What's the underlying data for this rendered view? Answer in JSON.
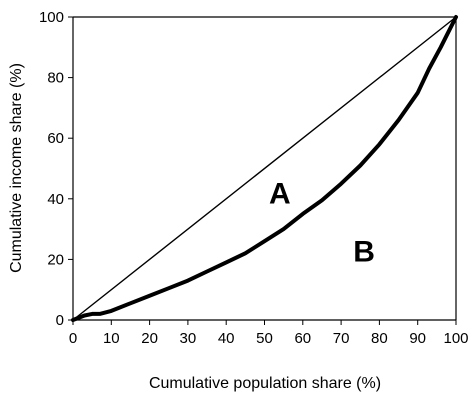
{
  "chart_data": {
    "type": "line",
    "xlabel": "Cumulative population share (%)",
    "ylabel": "Cumulative income share (%)",
    "xlim": [
      0,
      100
    ],
    "ylim": [
      0,
      100
    ],
    "x_ticks": [
      "0",
      "10",
      "20",
      "30",
      "40",
      "50",
      "60",
      "70",
      "80",
      "90",
      "100"
    ],
    "y_ticks": [
      "0",
      "20",
      "40",
      "60",
      "80",
      "100"
    ],
    "grid": false,
    "legend": "none",
    "series": [
      {
        "style": "thin",
        "x": [
          0,
          100
        ],
        "y": [
          0,
          100
        ]
      },
      {
        "style": "thick",
        "x": [
          0,
          3,
          5,
          7,
          10,
          15,
          20,
          25,
          30,
          35,
          40,
          45,
          50,
          55,
          60,
          65,
          70,
          75,
          80,
          85,
          90,
          93,
          96,
          98,
          100
        ],
        "y": [
          0,
          1.5,
          2,
          2,
          3,
          5.5,
          8,
          10.5,
          13,
          16,
          19,
          22,
          26,
          30,
          35,
          39.5,
          45,
          51,
          58,
          66,
          75,
          83,
          90,
          95,
          100
        ]
      }
    ],
    "annotations": [
      {
        "text": "A",
        "x": 54,
        "y": 42
      },
      {
        "text": "B",
        "x": 76,
        "y": 23
      }
    ]
  }
}
